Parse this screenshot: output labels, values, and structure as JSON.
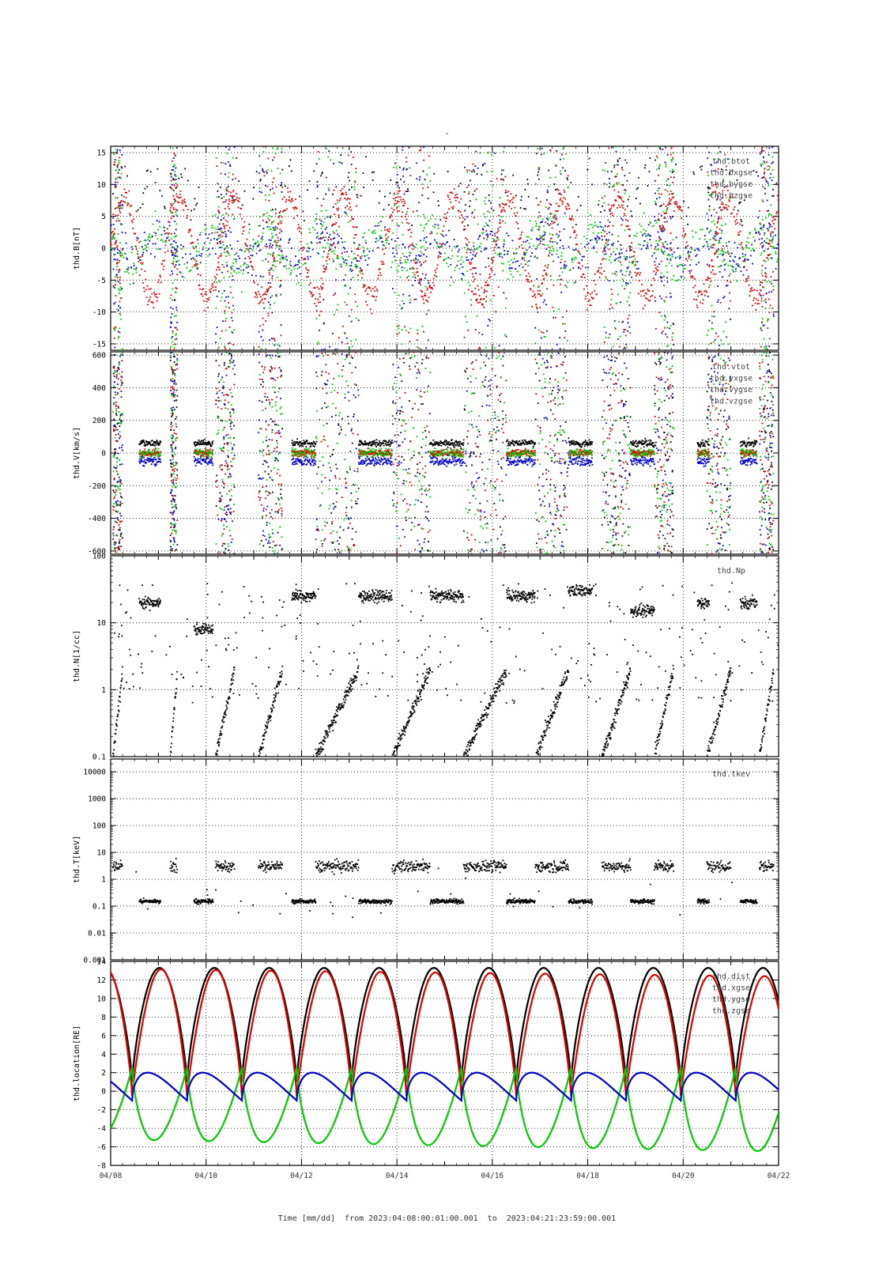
{
  "title": "-",
  "x_axis": {
    "label": "Time [mm/dd]  from 2023:04:08:00:01:00.001  to  2023:04:21:23:59:00.001",
    "ticks": [
      "04/08",
      "04/10",
      "04/12",
      "04/14",
      "04/16",
      "04/18",
      "04/20",
      "04/22"
    ],
    "range_days": [
      0,
      14
    ]
  },
  "colors": {
    "black": "#000000",
    "red": "#dd0000",
    "green": "#00cc00",
    "blue": "#0000cc",
    "grid": "#000000"
  },
  "chart_data": [
    {
      "type": "scatter",
      "ylabel": "thd.B[nT]",
      "ylim": [
        -16,
        16
      ],
      "yticks": [
        "-15",
        "-10",
        "-5",
        "0",
        "5",
        "10",
        "15"
      ],
      "ytick_values": [
        -15,
        -10,
        -5,
        0,
        5,
        10,
        15
      ],
      "legend": [
        "thd.btot",
        "thd.bxgse",
        "thd.bygse",
        "thd.bzgse"
      ],
      "series": [
        {
          "name": "thd.btot",
          "color": "black"
        },
        {
          "name": "thd.bxgse",
          "color": "red"
        },
        {
          "name": "thd.bygse",
          "color": "green"
        },
        {
          "name": "thd.bzgse",
          "color": "blue"
        }
      ]
    },
    {
      "type": "scatter",
      "ylabel": "thd.V[km/s]",
      "ylim": [
        -620,
        620
      ],
      "yticks": [
        "-600",
        "-400",
        "-200",
        "0",
        "200",
        "400",
        "600"
      ],
      "ytick_values": [
        -600,
        -400,
        -200,
        0,
        200,
        400,
        600
      ],
      "legend": [
        "thd.vtot",
        "thd.vxgse",
        "thd.vygse",
        "thd.vzgse"
      ],
      "series": [
        {
          "name": "thd.vtot",
          "color": "black"
        },
        {
          "name": "thd.vxgse",
          "color": "red"
        },
        {
          "name": "thd.vygse",
          "color": "green"
        },
        {
          "name": "thd.vzgse",
          "color": "blue"
        }
      ]
    },
    {
      "type": "scatter",
      "ylabel": "thd.N[1/cc]",
      "scale": "log",
      "ylim": [
        0.1,
        100
      ],
      "yticks": [
        "0.1",
        "1",
        "10",
        "100"
      ],
      "ytick_values": [
        0.1,
        1,
        10,
        100
      ],
      "legend": [
        "thd.Np"
      ],
      "series": [
        {
          "name": "thd.Np",
          "color": "black"
        }
      ]
    },
    {
      "type": "scatter",
      "ylabel": "thd.T[keV]",
      "scale": "log",
      "ylim": [
        0.001,
        30000
      ],
      "yticks": [
        "0.001",
        "0.01",
        "0.1",
        "1",
        "10",
        "100",
        "1000",
        "10000"
      ],
      "ytick_values": [
        0.001,
        0.01,
        0.1,
        1,
        10,
        100,
        1000,
        10000
      ],
      "legend": [
        "thd.tkev"
      ],
      "series": [
        {
          "name": "thd.tkev",
          "color": "black"
        }
      ]
    },
    {
      "type": "line",
      "ylabel": "thd.location[RE]",
      "ylim": [
        -8,
        14
      ],
      "yticks": [
        "-8",
        "-6",
        "-4",
        "-2",
        "0",
        "2",
        "4",
        "6",
        "8",
        "10",
        "12",
        "14"
      ],
      "ytick_values": [
        -8,
        -6,
        -4,
        -2,
        0,
        2,
        4,
        6,
        8,
        10,
        12,
        14
      ],
      "legend": [
        "thd.dist",
        "thd.xgse",
        "thd.ygse",
        "thd.zgse"
      ],
      "orbit_period_days": 1.15,
      "series": [
        {
          "name": "thd.dist",
          "color": "black",
          "apogee": 13.3,
          "perigee": 1.0
        },
        {
          "name": "thd.xgse",
          "color": "red",
          "apogee": [
            13.2,
            12.4
          ],
          "perigee": -0.5
        },
        {
          "name": "thd.ygse",
          "color": "green",
          "min": [
            -5.2,
            -6.5
          ],
          "max": 2.6
        },
        {
          "name": "thd.zgse",
          "color": "blue",
          "min": -1.0,
          "max": 2.0
        }
      ]
    }
  ]
}
